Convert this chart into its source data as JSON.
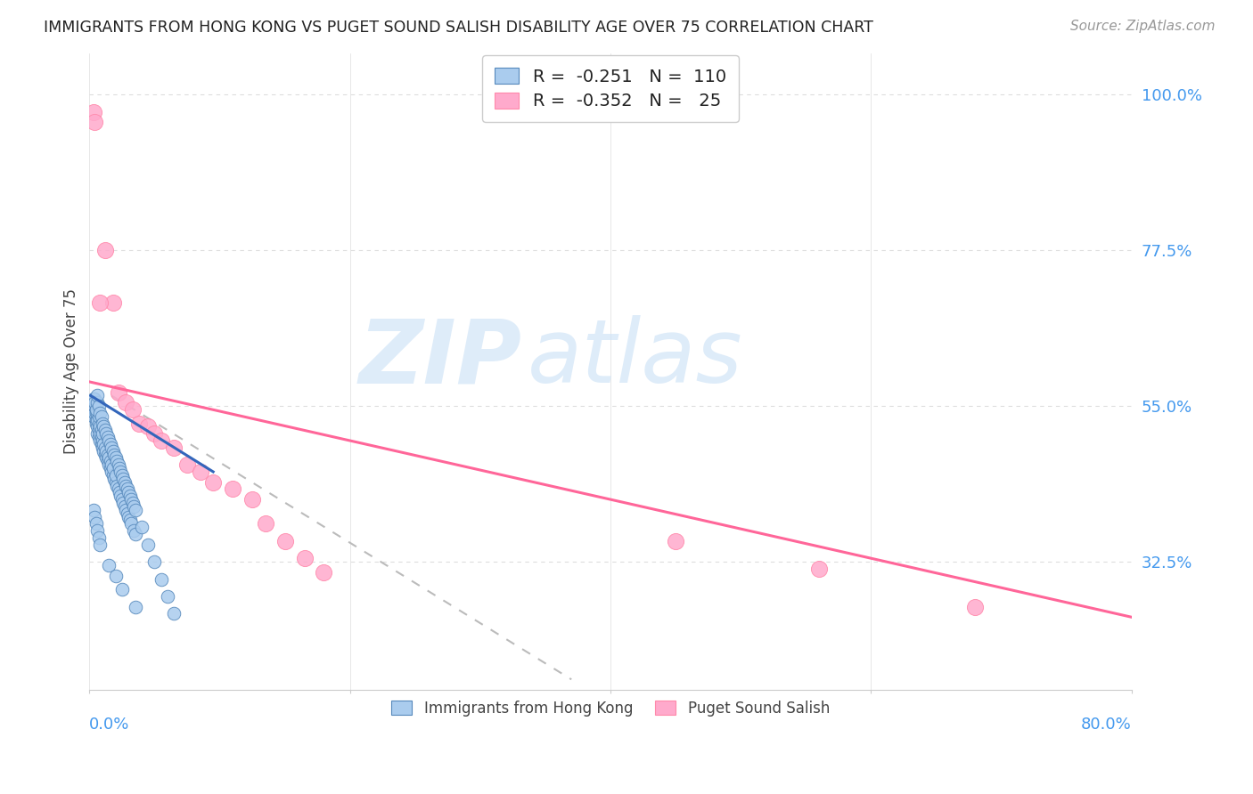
{
  "title": "IMMIGRANTS FROM HONG KONG VS PUGET SOUND SALISH DISABILITY AGE OVER 75 CORRELATION CHART",
  "source": "Source: ZipAtlas.com",
  "ylabel": "Disability Age Over 75",
  "y_tick_labels": [
    "100.0%",
    "77.5%",
    "55.0%",
    "32.5%"
  ],
  "y_tick_values": [
    1.0,
    0.775,
    0.55,
    0.325
  ],
  "xmin": 0.0,
  "xmax": 0.8,
  "ymin": 0.14,
  "ymax": 1.06,
  "blue_line_color": "#3366bb",
  "pink_line_color": "#ff6699",
  "blue_scatter_color": "#aaccee",
  "pink_scatter_color": "#ffaacc",
  "blue_scatter_edge": "#5588bb",
  "pink_scatter_edge": "#ff88aa",
  "dash_color": "#bbbbbb",
  "grid_color": "#dddddd",
  "background_color": "#ffffff",
  "title_color": "#222222",
  "axis_label_color": "#444444",
  "tick_label_color": "#4499ee",
  "source_color": "#999999",
  "watermark_color": "#d0e4f7",
  "blue_x": [
    0.002,
    0.003,
    0.003,
    0.004,
    0.004,
    0.004,
    0.005,
    0.005,
    0.005,
    0.005,
    0.006,
    0.006,
    0.006,
    0.006,
    0.007,
    0.007,
    0.007,
    0.007,
    0.008,
    0.008,
    0.008,
    0.009,
    0.009,
    0.009,
    0.01,
    0.01,
    0.01,
    0.011,
    0.011,
    0.012,
    0.012,
    0.013,
    0.013,
    0.014,
    0.014,
    0.015,
    0.015,
    0.016,
    0.016,
    0.017,
    0.017,
    0.018,
    0.018,
    0.019,
    0.02,
    0.02,
    0.021,
    0.022,
    0.023,
    0.024,
    0.025,
    0.026,
    0.027,
    0.028,
    0.029,
    0.03,
    0.031,
    0.032,
    0.034,
    0.035,
    0.003,
    0.004,
    0.005,
    0.006,
    0.006,
    0.007,
    0.008,
    0.009,
    0.01,
    0.011,
    0.012,
    0.013,
    0.014,
    0.015,
    0.016,
    0.017,
    0.018,
    0.019,
    0.02,
    0.021,
    0.022,
    0.023,
    0.024,
    0.025,
    0.026,
    0.027,
    0.028,
    0.029,
    0.03,
    0.031,
    0.032,
    0.033,
    0.034,
    0.035,
    0.04,
    0.045,
    0.05,
    0.055,
    0.06,
    0.065,
    0.003,
    0.004,
    0.005,
    0.006,
    0.007,
    0.008,
    0.015,
    0.02,
    0.025,
    0.035
  ],
  "blue_y": [
    0.545,
    0.535,
    0.555,
    0.54,
    0.55,
    0.56,
    0.53,
    0.54,
    0.55,
    0.525,
    0.51,
    0.52,
    0.53,
    0.54,
    0.505,
    0.515,
    0.525,
    0.535,
    0.5,
    0.51,
    0.52,
    0.495,
    0.505,
    0.515,
    0.49,
    0.5,
    0.51,
    0.485,
    0.495,
    0.48,
    0.49,
    0.475,
    0.485,
    0.47,
    0.48,
    0.465,
    0.475,
    0.46,
    0.47,
    0.455,
    0.465,
    0.45,
    0.46,
    0.445,
    0.44,
    0.45,
    0.435,
    0.43,
    0.425,
    0.42,
    0.415,
    0.41,
    0.405,
    0.4,
    0.395,
    0.39,
    0.385,
    0.38,
    0.37,
    0.365,
    0.56,
    0.555,
    0.545,
    0.555,
    0.565,
    0.55,
    0.54,
    0.535,
    0.525,
    0.52,
    0.515,
    0.51,
    0.505,
    0.5,
    0.495,
    0.49,
    0.485,
    0.48,
    0.475,
    0.47,
    0.465,
    0.46,
    0.455,
    0.45,
    0.445,
    0.44,
    0.435,
    0.43,
    0.425,
    0.42,
    0.415,
    0.41,
    0.405,
    0.4,
    0.375,
    0.35,
    0.325,
    0.3,
    0.275,
    0.25,
    0.4,
    0.39,
    0.38,
    0.37,
    0.36,
    0.35,
    0.32,
    0.305,
    0.285,
    0.26
  ],
  "pink_x": [
    0.003,
    0.004,
    0.012,
    0.018,
    0.022,
    0.028,
    0.033,
    0.038,
    0.045,
    0.05,
    0.055,
    0.065,
    0.075,
    0.085,
    0.095,
    0.11,
    0.125,
    0.135,
    0.15,
    0.165,
    0.18,
    0.45,
    0.56,
    0.68,
    0.008
  ],
  "pink_y": [
    0.975,
    0.96,
    0.775,
    0.7,
    0.57,
    0.555,
    0.545,
    0.525,
    0.52,
    0.51,
    0.5,
    0.49,
    0.465,
    0.455,
    0.44,
    0.43,
    0.415,
    0.38,
    0.355,
    0.33,
    0.31,
    0.355,
    0.315,
    0.26,
    0.7
  ],
  "blue_line_x": [
    0.001,
    0.095
  ],
  "blue_line_y": [
    0.565,
    0.455
  ],
  "pink_line_x": [
    0.0,
    0.8
  ],
  "pink_line_y": [
    0.585,
    0.245
  ],
  "dash_line_x": [
    0.017,
    0.37
  ],
  "dash_line_y": [
    0.565,
    0.155
  ]
}
